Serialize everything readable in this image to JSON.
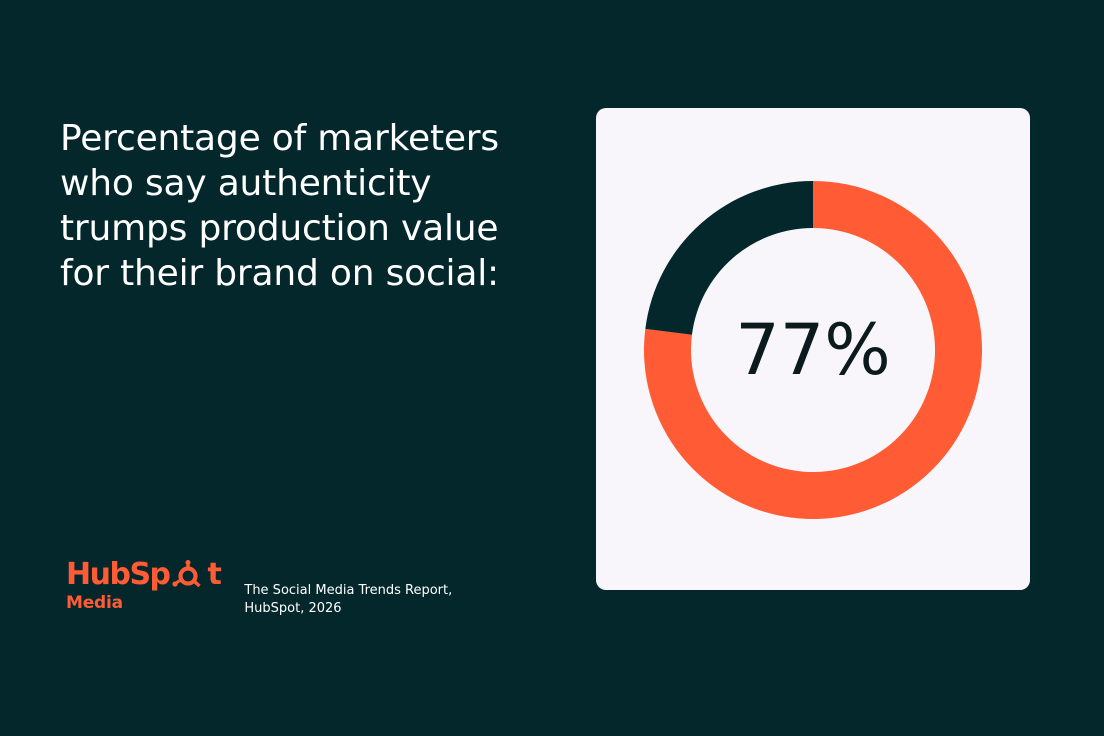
{
  "headline": "Percentage of marketers who say authenticity trumps production value for their brand on social:",
  "source": {
    "line1": "The Social Media Trends Report,",
    "line2": "HubSpot, 2026"
  },
  "logo": {
    "name": "HubSpot",
    "sub": "Media"
  },
  "colors": {
    "background": "#03272a",
    "accent": "#ff5c35",
    "card": "#f8f6fb",
    "remainder": "#03272a"
  },
  "chart_data": {
    "type": "pie",
    "categories": [
      "",
      ""
    ],
    "values": [
      77,
      23
    ],
    "center_label": "77%"
  }
}
